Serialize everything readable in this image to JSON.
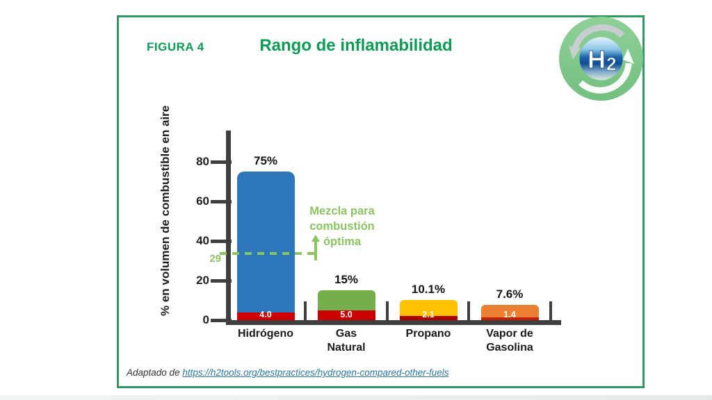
{
  "figure": {
    "label": "FIGURA 4",
    "title": "Rango de inflamabilidad"
  },
  "logo": {
    "text": "H",
    "subscript": "2"
  },
  "chart_data": {
    "type": "bar",
    "title": "Rango de inflamabilidad",
    "ylabel": "% en volumen de combustible en aire",
    "yticks": [
      0,
      20,
      40,
      60,
      80
    ],
    "ylim": [
      0,
      95
    ],
    "grid": false,
    "annotation": {
      "value": 29,
      "value_label": "29",
      "lines": [
        "Mezcla para",
        "combustión",
        "óptima"
      ]
    },
    "categories": [
      "Hidrógeno",
      "Gas Natural",
      "Propano",
      "Vapor de Gasolina"
    ],
    "bars": [
      {
        "name_lines": [
          "Hidrógeno"
        ],
        "upper_limit": 75,
        "upper_label": "75%",
        "lower_limit": 4.0,
        "lower_label": "4.0",
        "color": "#2E76BC",
        "lower_color": "#D10000"
      },
      {
        "name_lines": [
          "Gas",
          "Natural"
        ],
        "upper_limit": 15,
        "upper_label": "15%",
        "lower_limit": 5.0,
        "lower_label": "5.0",
        "color": "#74AF4C",
        "lower_color": "#CB0000"
      },
      {
        "name_lines": [
          "Propano"
        ],
        "upper_limit": 10.1,
        "upper_label": "10.1%",
        "lower_limit": 2.1,
        "lower_label": "2.1",
        "color": "#FFC000",
        "lower_color": "#AF0000"
      },
      {
        "name_lines": [
          "Vapor de",
          "Gasolina"
        ],
        "upper_limit": 7.6,
        "upper_label": "7.6%",
        "lower_limit": 1.4,
        "lower_label": "1.4",
        "color": "#EC8032",
        "lower_color": "#C42000"
      }
    ]
  },
  "footer": {
    "prefix": "Adaptado de ",
    "link": "https://h2tools.org/bestpractices/hydrogen-compared-other-fuels"
  },
  "colors": {
    "accent_green": "#0A9D53",
    "border_green": "#2A9B63",
    "axis_dark": "#3F3F3F",
    "annotation_green": "#8AC55F",
    "link_blue": "#2879A8"
  }
}
